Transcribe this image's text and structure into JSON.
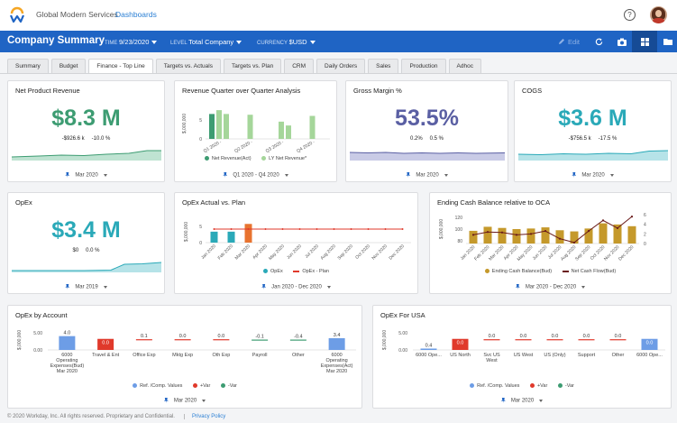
{
  "header": {
    "org": "Global Modern Services",
    "dashboards": "Dashboards",
    "help": "?"
  },
  "toolbar": {
    "title": "Company Summary",
    "time_label": "TIME",
    "time_value": "9/23/2020",
    "level_label": "LEVEL",
    "level_value": "Total Company",
    "currency_label": "CURRENCY",
    "currency_value": "$USD",
    "edit": "Edit"
  },
  "tabs": [
    {
      "label": "Summary"
    },
    {
      "label": "Budget"
    },
    {
      "label": "Finance - Top Line"
    },
    {
      "label": "Targets vs. Actuals"
    },
    {
      "label": "Targets vs. Plan"
    },
    {
      "label": "CRM"
    },
    {
      "label": "Daily Orders"
    },
    {
      "label": "Sales"
    },
    {
      "label": "Production"
    },
    {
      "label": "Adhoc"
    }
  ],
  "active_tab": "Finance - Top Line",
  "colors": {
    "green": "#3d9c72",
    "purple": "#5a5fa3",
    "teal": "#2aa9b8",
    "blue": "#1f64c4",
    "red": "#e0392b",
    "orange": "#e8732f",
    "gold": "#c5992b"
  },
  "kpis": {
    "net_product_revenue": {
      "title": "Net Product Revenue",
      "value": "$8.3 M",
      "delta": "-$926.6 k",
      "pct": "-10.0 %",
      "period": "Mar 2020"
    },
    "gross_margin": {
      "title": "Gross Margin %",
      "value": "53.5%",
      "delta": "0.2%",
      "pct": "0.5 %",
      "period": "Mar 2020"
    },
    "cogs": {
      "title": "COGS",
      "value": "$3.6 M",
      "delta": "-$756.5 k",
      "pct": "-17.5 %",
      "period": "Mar 2020"
    },
    "opex": {
      "title": "OpEx",
      "value": "$3.4 M",
      "delta": "$0",
      "pct": "0.0 %",
      "period": "Mar 2019"
    }
  },
  "chart_data": [
    {
      "name": "revenue-qoq",
      "type": "bar",
      "title": "Revenue Quarter over Quarter Analysis",
      "ylabel": "$,000,000",
      "yticks": [
        "0",
        "5"
      ],
      "ylim": [
        0,
        8
      ],
      "categories": [
        "Q1 2020 -",
        "Q2 2020 -",
        "Q3 2020 -",
        "Q4 2020 -"
      ],
      "series": [
        {
          "name": "Net Revenue(Act)",
          "values": [
            6.5,
            0,
            0,
            0
          ]
        },
        {
          "name": "LY Net Revenue*",
          "values": [
            7.5,
            6.3,
            4.5,
            6.0
          ]
        }
      ],
      "extra_bars": [
        6.5,
        0,
        3.5,
        0
      ],
      "period": "Q1 2020 - Q4 2020"
    },
    {
      "name": "opex-vs-plan",
      "type": "bar",
      "title": "OpEx Actual vs. Plan",
      "ylabel": "$,000,000",
      "yticks": [
        "0",
        "5"
      ],
      "ylim": [
        0,
        7
      ],
      "categories": [
        "Jan 2020",
        "Feb 2020",
        "Mar 2020",
        "Apr 2020",
        "May 2020",
        "Jun 2020",
        "Jul 2020",
        "Aug 2020",
        "Sep 2020",
        "Oct 2020",
        "Nov 2020",
        "Dec 2020"
      ],
      "series": [
        {
          "name": "OpEx",
          "values": [
            3.4,
            3.4,
            0,
            0,
            0,
            0,
            0,
            0,
            0,
            0,
            0,
            0
          ]
        },
        {
          "name": "OpEx - Plan",
          "values": [
            4.2,
            4.2,
            4.2,
            4.2,
            4.2,
            4.2,
            4.2,
            4.2,
            4.2,
            4.2,
            4.2,
            4.2
          ]
        }
      ],
      "highlight": {
        "index": 2,
        "value": 5.8
      },
      "period": "Jan 2020 - Dec 2020"
    },
    {
      "name": "ending-cash",
      "type": "bar",
      "title": "Ending Cash Balance relative to OCA",
      "ylabel": "$,000,000",
      "yticks": [
        "80",
        "100",
        "120"
      ],
      "yticks_right": [
        "0",
        "2",
        "4",
        "6"
      ],
      "ylim": [
        75,
        125
      ],
      "ylim_right": [
        0,
        6
      ],
      "categories": [
        "Jan 2020",
        "Feb 2020",
        "Mar 2020",
        "Apr 2020",
        "May 2020",
        "Jun 2020",
        "Jul 2020",
        "Aug 2020",
        "Sep 2020",
        "Oct 2020",
        "Nov 2020",
        "Dec 2020"
      ],
      "series": [
        {
          "name": "Ending Cash Balance(Bud)",
          "values": [
            97,
            104,
            102,
            100,
            101,
            103,
            98,
            96,
            101,
            110,
            108,
            105
          ]
        },
        {
          "name": "Net Cash Flow(Bud)",
          "values": [
            1.8,
            2.4,
            2.3,
            1.8,
            2.0,
            2.6,
            1.0,
            0.2,
            2.6,
            4.8,
            3.2,
            5.6
          ]
        }
      ],
      "period": "Mar 2020 - Dec 2020"
    },
    {
      "name": "opex-by-account",
      "type": "bar",
      "title": "OpEx by Account",
      "ylabel": "$,000,000",
      "yticks": [
        "0.00",
        "5.00"
      ],
      "ylim": [
        0,
        6
      ],
      "categories": [
        "6000 Operating Expenses(Bud) Mar 2020",
        "Travel & Ent",
        "Office Exp",
        "Mktg Exp",
        "Oth Exp",
        "Payroll",
        "Other",
        "6000 Operating Expenses(Act) Mar 2020"
      ],
      "labels": [
        "4.0",
        "0.0",
        "0.1",
        "0.0",
        "0.0",
        "-0.1",
        "-0.4",
        "3.4"
      ],
      "legend": [
        "Ref. /Comp. Values",
        "+Var",
        "-Var"
      ],
      "period": "Mar 2020"
    },
    {
      "name": "opex-usa",
      "type": "bar",
      "title": "OpEx For USA",
      "ylabel": "$,000,000",
      "yticks": [
        "0.00",
        "5.00"
      ],
      "ylim": [
        0,
        6
      ],
      "categories": [
        "6000 Ope...",
        "US North",
        "Svc US West",
        "US West",
        "US (Only)",
        "Support",
        "Other",
        "6000 Ope..."
      ],
      "labels": [
        "0.4",
        "0.0",
        "0.0",
        "0.0",
        "0.0",
        "0.0",
        "0.0",
        "0.0"
      ],
      "legend": [
        "Ref. /Comp. Values",
        "+Var",
        "-Var"
      ],
      "period": "Mar 2020"
    }
  ],
  "footer": {
    "copyright": "© 2020 Workday, Inc. All rights reserved. Proprietary and Confidential.",
    "privacy": "Privacy Policy"
  }
}
